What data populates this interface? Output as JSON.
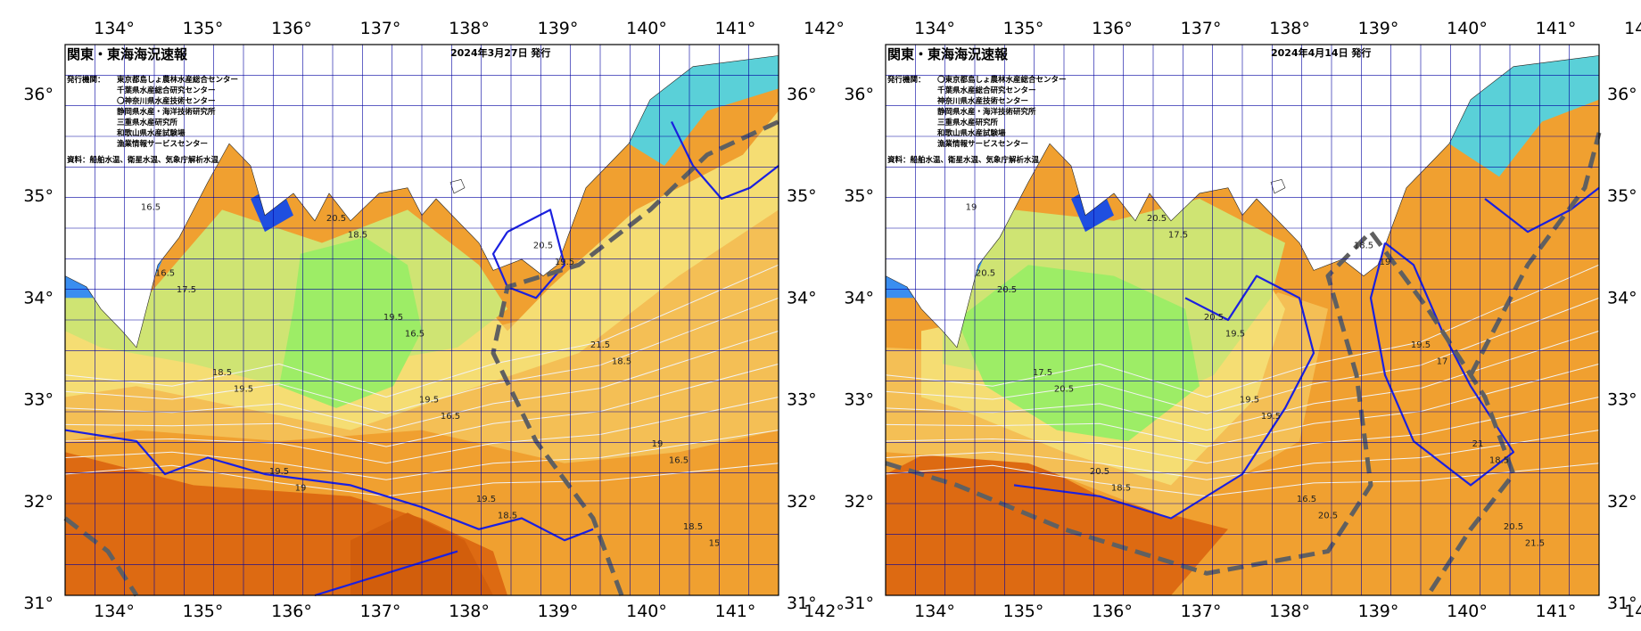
{
  "colors": {
    "deep_orange": "#dd6a12",
    "orange": "#f0a030",
    "light_orange": "#f4bf55",
    "yellow": "#f5dd73",
    "yellow_green": "#cfe473",
    "green": "#9ded66",
    "bright_green": "#86ea5e",
    "cyan": "#5ad0d8",
    "blue": "#3a8ef0",
    "deep_blue": "#1f4fe0",
    "land": "#ffffff",
    "grid": "#0000a0",
    "contour_blue": "#1a20e0",
    "contour_white": "#f2f2f2",
    "kuroshio_axis": "#606060"
  },
  "axes": {
    "lon_ticks": [
      "134°",
      "135°",
      "136°",
      "137°",
      "138°",
      "139°",
      "140°",
      "141°",
      "142°"
    ],
    "lat_ticks": [
      "36°",
      "35°",
      "34°",
      "33°",
      "32°",
      "31°"
    ]
  },
  "panels": [
    {
      "title": "関東・東海海況速報",
      "date": "2024年3月27日 発行",
      "issuer_label": "発行機関：",
      "issuers": [
        "東京都島しょ農林水産総合センター",
        "千葉県水産総合研究センター",
        "〇神奈川県水産技術センター",
        "静岡県水産・海洋技術研究所",
        "三重県水産研究所",
        "和歌山県水産試験場",
        "漁業情報サービスセンター"
      ],
      "source": "資料：船舶水温、衛星水温、気象庁解析水温",
      "contour_labels": [
        "16.5",
        "16.5",
        "16.5",
        "18.5",
        "18.5",
        "19",
        "19.5",
        "19.5",
        "18.5",
        "17.5",
        "16.5",
        "15",
        "19.5",
        "19",
        "20.5",
        "21.5",
        "19.5",
        "20.5",
        "18.5",
        "19.5",
        "16.5",
        "19.5",
        "18.5"
      ]
    },
    {
      "title": "関東・東海海況速報",
      "date": "2024年4月14日 発行",
      "issuer_label": "発行機関：",
      "issuers": [
        "〇東京都島しょ農林水産総合センター",
        "千葉県水産総合研究センター",
        "神奈川県水産技術センター",
        "静岡県水産・海洋技術研究所",
        "三重県水産研究所",
        "和歌山県水産試験場",
        "漁業情報サービスセンター"
      ],
      "source": "資料：船舶水温、衛星水温、気象庁解析水温",
      "contour_labels": [
        "19",
        "19.5",
        "18.5",
        "17.5",
        "17",
        "18.5",
        "19",
        "20.5",
        "20.5",
        "20.5",
        "19.5",
        "21.5",
        "20.5",
        "21",
        "20.5",
        "19.5",
        "20.5",
        "18.5",
        "17.5",
        "16.5",
        "20.5",
        "19.5",
        "20.5"
      ]
    }
  ]
}
